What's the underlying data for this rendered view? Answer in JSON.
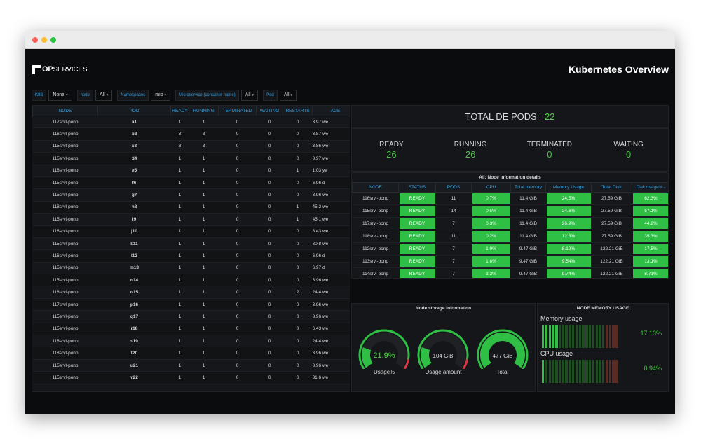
{
  "brand": {
    "logo_text_bold": "OP",
    "logo_text_thin": "SERVICES"
  },
  "dashboard_title": "Kubernetes Overview",
  "filters": [
    {
      "label": "K8S",
      "value": "None"
    },
    {
      "label": "node",
      "value": "All"
    },
    {
      "label": "Namespaces",
      "value": "mip"
    },
    {
      "label": "Microservice (container name)",
      "value": "All"
    },
    {
      "label": "Pod",
      "value": "All"
    }
  ],
  "pods_table": {
    "columns": [
      "NODE",
      "POD",
      "READY",
      "RUNNING",
      "TERMINATED",
      "WAITING",
      "RESTARTS",
      "AGE"
    ],
    "rows": [
      [
        "117srvl-ponp",
        "a1",
        "1",
        "1",
        "0",
        "0",
        "0",
        "3.97 we"
      ],
      [
        "116srvl-ponp",
        "b2",
        "3",
        "3",
        "0",
        "0",
        "0",
        "3.87 we"
      ],
      [
        "115srvl-ponp",
        "c3",
        "3",
        "3",
        "0",
        "0",
        "0",
        "3.86 we"
      ],
      [
        "115srvl-ponp",
        "d4",
        "1",
        "1",
        "0",
        "0",
        "0",
        "3.97 we"
      ],
      [
        "118srvl-ponp",
        "e5",
        "1",
        "1",
        "0",
        "0",
        "1",
        "1.03 ye"
      ],
      [
        "115srvl-ponp",
        "f6",
        "1",
        "1",
        "0",
        "0",
        "0",
        "6.96 d"
      ],
      [
        "115srvl-ponp",
        "g7",
        "1",
        "1",
        "0",
        "0",
        "0",
        "3.96 we"
      ],
      [
        "118srvl-ponp",
        "h8",
        "1",
        "1",
        "0",
        "0",
        "1",
        "45.2 we"
      ],
      [
        "115srvl-ponp",
        "i9",
        "1",
        "1",
        "0",
        "0",
        "1",
        "45.1 we"
      ],
      [
        "118srvl-ponp",
        "j10",
        "1",
        "1",
        "0",
        "0",
        "0",
        "6.43 we"
      ],
      [
        "115srvl-ponp",
        "k11",
        "1",
        "1",
        "0",
        "0",
        "0",
        "30.8 we"
      ],
      [
        "116srvl-ponp",
        "l12",
        "1",
        "1",
        "0",
        "0",
        "0",
        "6.96 d"
      ],
      [
        "115srvl-ponp",
        "m13",
        "1",
        "1",
        "0",
        "0",
        "0",
        "6.97 d"
      ],
      [
        "115srvl-ponp",
        "n14",
        "1",
        "1",
        "0",
        "0",
        "0",
        "3.96 we"
      ],
      [
        "118srvl-ponp",
        "o15",
        "1",
        "1",
        "0",
        "0",
        "2",
        "24.4 we"
      ],
      [
        "117srvl-ponp",
        "p16",
        "1",
        "1",
        "0",
        "0",
        "0",
        "3.96 we"
      ],
      [
        "115srvl-ponp",
        "q17",
        "1",
        "1",
        "0",
        "0",
        "0",
        "3.96 we"
      ],
      [
        "115srvl-ponp",
        "r18",
        "1",
        "1",
        "0",
        "0",
        "0",
        "6.43 we"
      ],
      [
        "118srvl-ponp",
        "s19",
        "1",
        "1",
        "0",
        "0",
        "0",
        "24.4 we"
      ],
      [
        "118srvl-ponp",
        "t20",
        "1",
        "1",
        "0",
        "0",
        "0",
        "3.96 we"
      ],
      [
        "115srvl-ponp",
        "u21",
        "1",
        "1",
        "0",
        "0",
        "0",
        "3.96 we"
      ],
      [
        "115srvl-ponp",
        "v22",
        "1",
        "1",
        "0",
        "0",
        "0",
        "31.6 we"
      ]
    ]
  },
  "total_pods": {
    "label": "TOTAL DE PODS =",
    "value": "22"
  },
  "pod_stats": [
    {
      "label": "READY",
      "value": "26"
    },
    {
      "label": "RUNNING",
      "value": "26"
    },
    {
      "label": "TERMINATED",
      "value": "0"
    },
    {
      "label": "WAITING",
      "value": "0"
    }
  ],
  "node_info": {
    "title": "All:  Node information details",
    "columns": [
      "NODE",
      "STATUS",
      "PODS",
      "CPU",
      "Total memory",
      "Memory Usage",
      "Total Disk",
      "Disk usage% -"
    ],
    "rows": [
      [
        "116srvl-ponp",
        "READY",
        "11",
        "0.7%",
        "11.4 GiB",
        "24.5%",
        "27.59 GiB",
        "62.3%"
      ],
      [
        "115srvl-ponp",
        "READY",
        "14",
        "0.5%",
        "11.4 GiB",
        "24.6%",
        "27.59 GiB",
        "57.1%"
      ],
      [
        "117srvl-ponp",
        "READY",
        "7",
        "0.3%",
        "11.4 GiB",
        "26.9%",
        "27.59 GiB",
        "44.9%"
      ],
      [
        "118srvl-ponp",
        "READY",
        "11",
        "0.2%",
        "11.4 GiB",
        "12.3%",
        "27.59 GiB",
        "39.3%"
      ],
      [
        "112srvl-ponp",
        "READY",
        "7",
        "1.9%",
        "9.47 GiB",
        "8.19%",
        "122.21 GiB",
        "17.5%"
      ],
      [
        "113srvl-ponp",
        "READY",
        "7",
        "1.8%",
        "9.47 GiB",
        "9.54%",
        "122.21 GiB",
        "13.1%"
      ],
      [
        "114srvl-ponp",
        "READY",
        "7",
        "3.2%",
        "9.47 GiB",
        "9.74%",
        "122.21 GiB",
        "8.71%"
      ]
    ]
  },
  "storage": {
    "title": "Node storage information",
    "gauges": [
      {
        "value": "21.9%",
        "caption": "Usage%",
        "fraction": 0.219,
        "value_color": "#56d24a"
      },
      {
        "value": "104 GiB",
        "caption": "Usage amount",
        "fraction": 0.22,
        "value_color": "#d8d9da"
      },
      {
        "value": "477 GiB",
        "caption": "Total",
        "fraction": 1.0,
        "value_color": "#d8d9da"
      }
    ]
  },
  "node_memory": {
    "title": "NODE MEMORY USAGE",
    "memory": {
      "label": "Memory usage",
      "value": "17.13%",
      "fraction": 0.1713
    },
    "cpu": {
      "label": "CPU usage",
      "value": "0.94%",
      "fraction": 0.0094
    }
  },
  "colors": {
    "accent_blue": "#33a2e5",
    "green": "#2fbf45",
    "value_green": "#56d24a",
    "red": "#e02f44"
  }
}
